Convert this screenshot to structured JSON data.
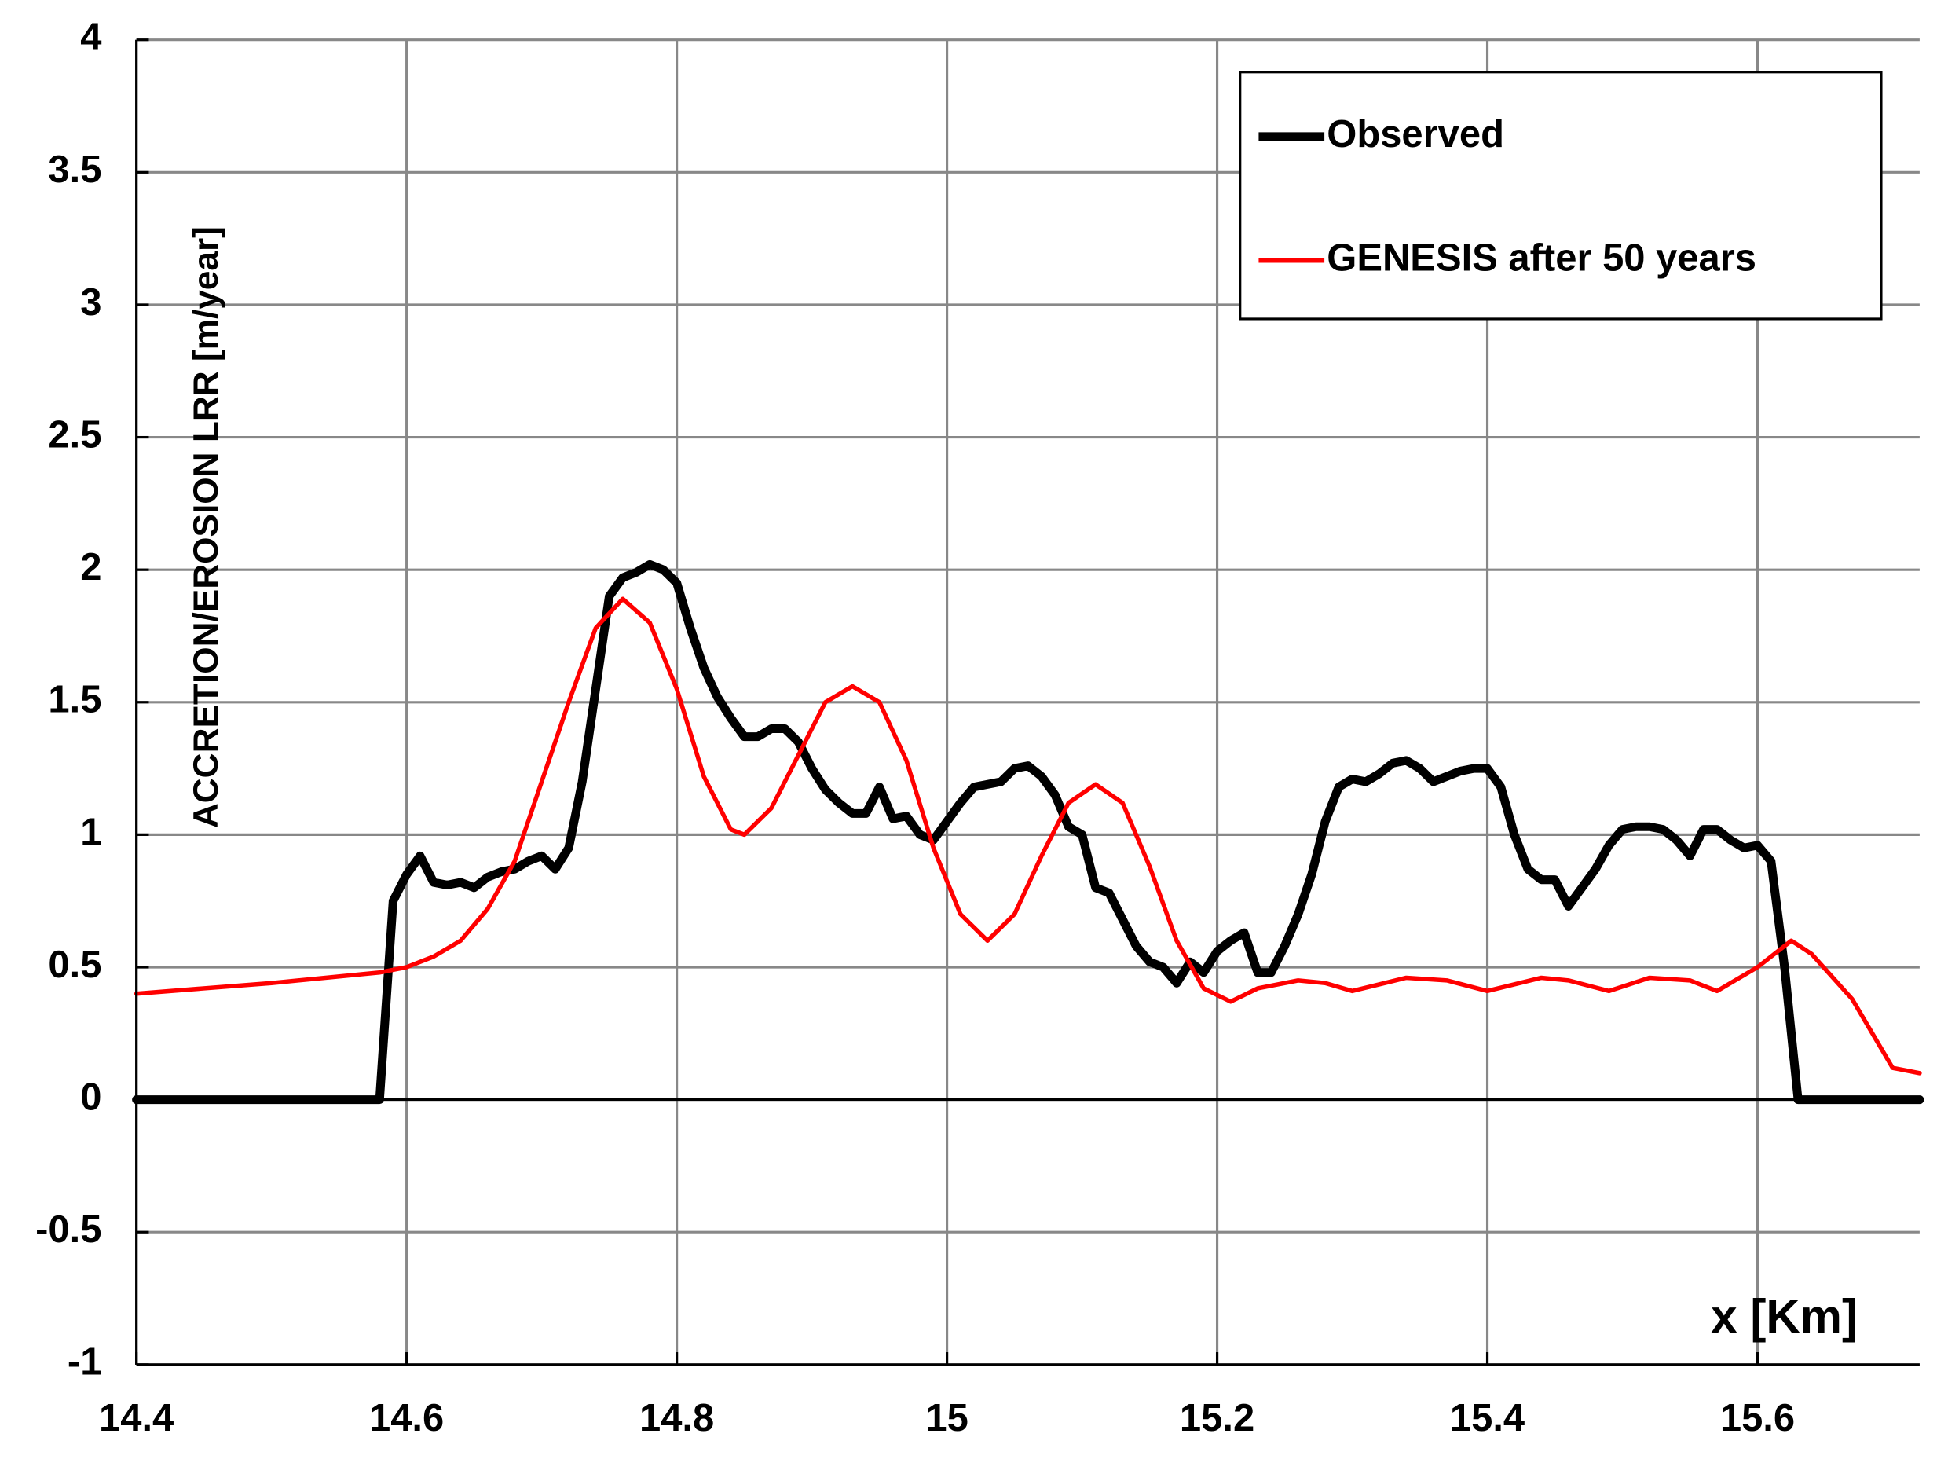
{
  "chart_data": {
    "type": "line",
    "x_label": "x [Km]",
    "y_label": "ACCRETION/EROSION LRR [m/year]",
    "xlim": [
      14.4,
      15.72
    ],
    "ylim": [
      -1,
      4
    ],
    "xticks": [
      14.4,
      14.6,
      14.8,
      15,
      15.2,
      15.4,
      15.6
    ],
    "yticks": [
      -1,
      -0.5,
      0,
      0.5,
      1,
      1.5,
      2,
      2.5,
      3,
      3.5,
      4
    ],
    "grid": true,
    "legend": "upper-right",
    "series": [
      {
        "name": "Observed",
        "color": "#000000",
        "x": [
          14.4,
          14.57,
          14.58,
          14.59,
          14.6,
          14.61,
          14.62,
          14.63,
          14.64,
          14.65,
          14.66,
          14.67,
          14.68,
          14.69,
          14.7,
          14.71,
          14.72,
          14.73,
          14.74,
          14.75,
          14.76,
          14.77,
          14.78,
          14.79,
          14.8,
          14.81,
          14.82,
          14.83,
          14.84,
          14.85,
          14.86,
          14.87,
          14.88,
          14.89,
          14.9,
          14.91,
          14.92,
          14.93,
          14.94,
          14.95,
          14.96,
          14.97,
          14.98,
          14.99,
          15.0,
          15.01,
          15.02,
          15.03,
          15.04,
          15.05,
          15.06,
          15.07,
          15.08,
          15.09,
          15.1,
          15.11,
          15.12,
          15.13,
          15.14,
          15.15,
          15.16,
          15.17,
          15.18,
          15.19,
          15.2,
          15.21,
          15.22,
          15.23,
          15.24,
          15.25,
          15.26,
          15.27,
          15.28,
          15.29,
          15.3,
          15.31,
          15.32,
          15.33,
          15.34,
          15.35,
          15.36,
          15.37,
          15.38,
          15.39,
          15.4,
          15.41,
          15.42,
          15.43,
          15.44,
          15.45,
          15.46,
          15.47,
          15.48,
          15.49,
          15.5,
          15.51,
          15.52,
          15.53,
          15.54,
          15.55,
          15.56,
          15.57,
          15.58,
          15.59,
          15.6,
          15.61,
          15.62,
          15.63,
          15.72
        ],
        "values": [
          0,
          0,
          0,
          0.75,
          0.85,
          0.92,
          0.82,
          0.81,
          0.82,
          0.8,
          0.84,
          0.86,
          0.87,
          0.9,
          0.92,
          0.87,
          0.95,
          1.2,
          1.55,
          1.9,
          1.97,
          1.99,
          2.02,
          2.0,
          1.95,
          1.78,
          1.63,
          1.52,
          1.44,
          1.37,
          1.37,
          1.4,
          1.4,
          1.35,
          1.25,
          1.17,
          1.12,
          1.08,
          1.08,
          1.18,
          1.06,
          1.07,
          1.0,
          0.98,
          1.05,
          1.12,
          1.18,
          1.19,
          1.2,
          1.25,
          1.26,
          1.22,
          1.15,
          1.03,
          1.0,
          0.8,
          0.78,
          0.68,
          0.58,
          0.52,
          0.5,
          0.44,
          0.52,
          0.48,
          0.56,
          0.6,
          0.63,
          0.48,
          0.48,
          0.58,
          0.7,
          0.85,
          1.05,
          1.18,
          1.21,
          1.2,
          1.23,
          1.27,
          1.28,
          1.25,
          1.2,
          1.22,
          1.24,
          1.25,
          1.25,
          1.18,
          1.0,
          0.87,
          0.83,
          0.83,
          0.73,
          0.8,
          0.87,
          0.96,
          1.02,
          1.03,
          1.03,
          1.02,
          0.98,
          0.92,
          1.02,
          1.02,
          0.98,
          0.95,
          0.96,
          0.9,
          0.5,
          0,
          0
        ]
      },
      {
        "name": "GENESIS after 50 years",
        "color": "#ff0000",
        "x": [
          14.4,
          14.5,
          14.58,
          14.6,
          14.62,
          14.64,
          14.66,
          14.68,
          14.7,
          14.72,
          14.74,
          14.76,
          14.78,
          14.8,
          14.82,
          14.84,
          14.85,
          14.87,
          14.89,
          14.91,
          14.93,
          14.95,
          14.97,
          14.99,
          15.01,
          15.03,
          15.05,
          15.07,
          15.09,
          15.11,
          15.13,
          15.15,
          15.17,
          15.19,
          15.21,
          15.23,
          15.26,
          15.28,
          15.3,
          15.34,
          15.37,
          15.4,
          15.44,
          15.46,
          15.49,
          15.52,
          15.55,
          15.57,
          15.6,
          15.625,
          15.64,
          15.67,
          15.7,
          15.72
        ],
        "values": [
          0.4,
          0.44,
          0.48,
          0.5,
          0.54,
          0.6,
          0.72,
          0.9,
          1.2,
          1.5,
          1.78,
          1.89,
          1.8,
          1.55,
          1.22,
          1.02,
          1.0,
          1.1,
          1.3,
          1.5,
          1.56,
          1.5,
          1.28,
          0.95,
          0.7,
          0.6,
          0.7,
          0.92,
          1.12,
          1.19,
          1.12,
          0.88,
          0.6,
          0.42,
          0.37,
          0.42,
          0.45,
          0.44,
          0.41,
          0.46,
          0.45,
          0.41,
          0.46,
          0.45,
          0.41,
          0.46,
          0.45,
          0.41,
          0.5,
          0.6,
          0.55,
          0.38,
          0.12,
          0.1
        ]
      }
    ]
  }
}
